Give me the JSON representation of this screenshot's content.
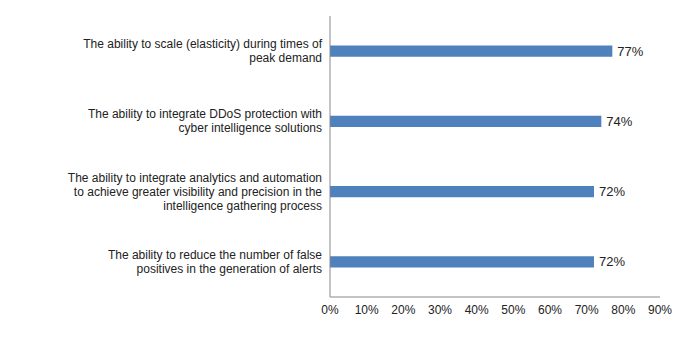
{
  "chart_data": {
    "type": "bar",
    "orientation": "horizontal",
    "categories": [
      "The ability to scale (elasticity) during times of peak demand",
      "The ability to integrate DDoS protection with cyber intelligence solutions",
      "The ability to integrate analytics and automation to achieve greater visibility and precision in the intelligence gathering process",
      "The ability to reduce the number of false positives in the generation of alerts"
    ],
    "values": [
      77,
      74,
      72,
      72
    ],
    "value_labels": [
      "77%",
      "74%",
      "72%",
      "72%"
    ],
    "data_labels": true,
    "color": "#4f81bd",
    "xlim": [
      0,
      90
    ],
    "xticks": [
      {
        "value": 0,
        "label": "0%"
      },
      {
        "value": 10,
        "label": "10%"
      },
      {
        "value": 20,
        "label": "20%"
      },
      {
        "value": 30,
        "label": "30%"
      },
      {
        "value": 40,
        "label": "40%"
      },
      {
        "value": 50,
        "label": "50%"
      },
      {
        "value": 60,
        "label": "60%"
      },
      {
        "value": 70,
        "label": "70%"
      },
      {
        "value": 80,
        "label": "80%"
      },
      {
        "value": 90,
        "label": "90%"
      }
    ],
    "grid": false
  }
}
